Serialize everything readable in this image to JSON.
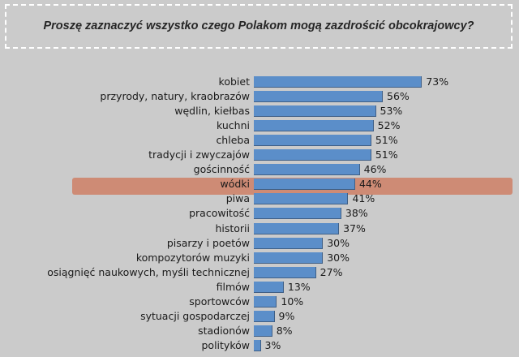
{
  "header": {
    "title": "Proszę zaznaczyć wszystko czego Polakom mogą zazdrościć obcokrajowcy?"
  },
  "chart_data": {
    "type": "bar",
    "orientation": "horizontal",
    "title": "Proszę zaznaczyć wszystko czego Polakom mogą zazdrościć obcokrajowcy?",
    "xlabel": "",
    "ylabel": "",
    "categories": [
      "kobiet",
      "przyrody, natury, kraobrazów",
      "wędlin, kiełbas",
      "kuchni",
      "chleba",
      "tradycji i zwyczajów",
      "gościnność",
      "wódki",
      "piwa",
      "pracowitość",
      "historii",
      "pisarzy i poetów",
      "kompozytorów muzyki",
      "osiągnięć naukowych, myśli technicznej",
      "filmów",
      "sportowców",
      "sytuacji gospodarczej",
      "stadionów",
      "polityków"
    ],
    "values": [
      73,
      56,
      53,
      52,
      51,
      51,
      46,
      44,
      41,
      38,
      37,
      30,
      30,
      27,
      13,
      10,
      9,
      8,
      3
    ],
    "value_labels": [
      "73%",
      "56%",
      "53%",
      "52%",
      "51%",
      "51%",
      "46%",
      "44%",
      "41%",
      "38%",
      "37%",
      "30%",
      "30%",
      "27%",
      "13%",
      "10%",
      "9%",
      "8%",
      "3%"
    ],
    "highlighted_category": "wódki",
    "bar_color": "#5b8ec9",
    "highlight_color": "#cd8770",
    "grid": false,
    "legend": "none"
  }
}
